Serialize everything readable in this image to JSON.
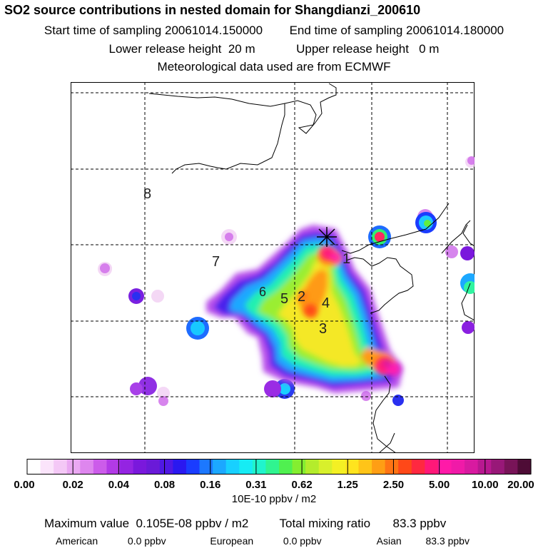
{
  "header": {
    "title": "SO2 source contributions in nested domain for Shangdianzi_200610",
    "start_label": "Start time of sampling",
    "start_value": "20061014.150000",
    "end_label": "End time of sampling",
    "end_value": "20061014.180000",
    "lower_label": "Lower release height",
    "lower_value": "20 m",
    "upper_label": "Upper release height",
    "upper_value": "0 m",
    "met_text": "Meteorological data used are from ECMWF"
  },
  "map": {
    "region_labels": [
      "8",
      "7",
      "6",
      "5",
      "2",
      "4",
      "3",
      "1"
    ],
    "receptor_marker": "star-marker"
  },
  "colorbar": {
    "tick_labels": [
      "0.00",
      "0.02",
      "0.04",
      "0.08",
      "0.16",
      "0.31",
      "0.62",
      "1.25",
      "2.50",
      "5.00",
      "10.00",
      "20.00"
    ],
    "colors": [
      "#ffffff",
      "#fbe4fb",
      "#f4c8f6",
      "#eaa8f2",
      "#de86ee",
      "#cc5cea",
      "#b23ae6",
      "#9424e2",
      "#7a18dc",
      "#6a1ad8",
      "#5018e4",
      "#2a18f0",
      "#1a3cff",
      "#1c78ff",
      "#1ca8ff",
      "#18d0ff",
      "#16ecf4",
      "#20f4cc",
      "#30f490",
      "#50f050",
      "#84ee30",
      "#b4ec2c",
      "#d8f02c",
      "#f4f024",
      "#ffe41e",
      "#ffc418",
      "#ff9e14",
      "#ff7414",
      "#ff4818",
      "#ff2840",
      "#ff1878",
      "#ff1aa8",
      "#f01aa8",
      "#d81aa0",
      "#b81890",
      "#981878",
      "#781458",
      "#4e0c36"
    ],
    "units": "10E-10 ppbv / m2"
  },
  "footer": {
    "max_label": "Maximum value",
    "max_value": "0.105E-08 ppbv / m2",
    "total_label": "Total mixing ratio",
    "total_value": "83.3 ppbv",
    "american_label": "American",
    "american_value": "0.0 ppbv",
    "european_label": "European",
    "european_value": "0.0 ppbv",
    "asian_label": "Asian",
    "asian_value": "83.3 ppbv"
  }
}
